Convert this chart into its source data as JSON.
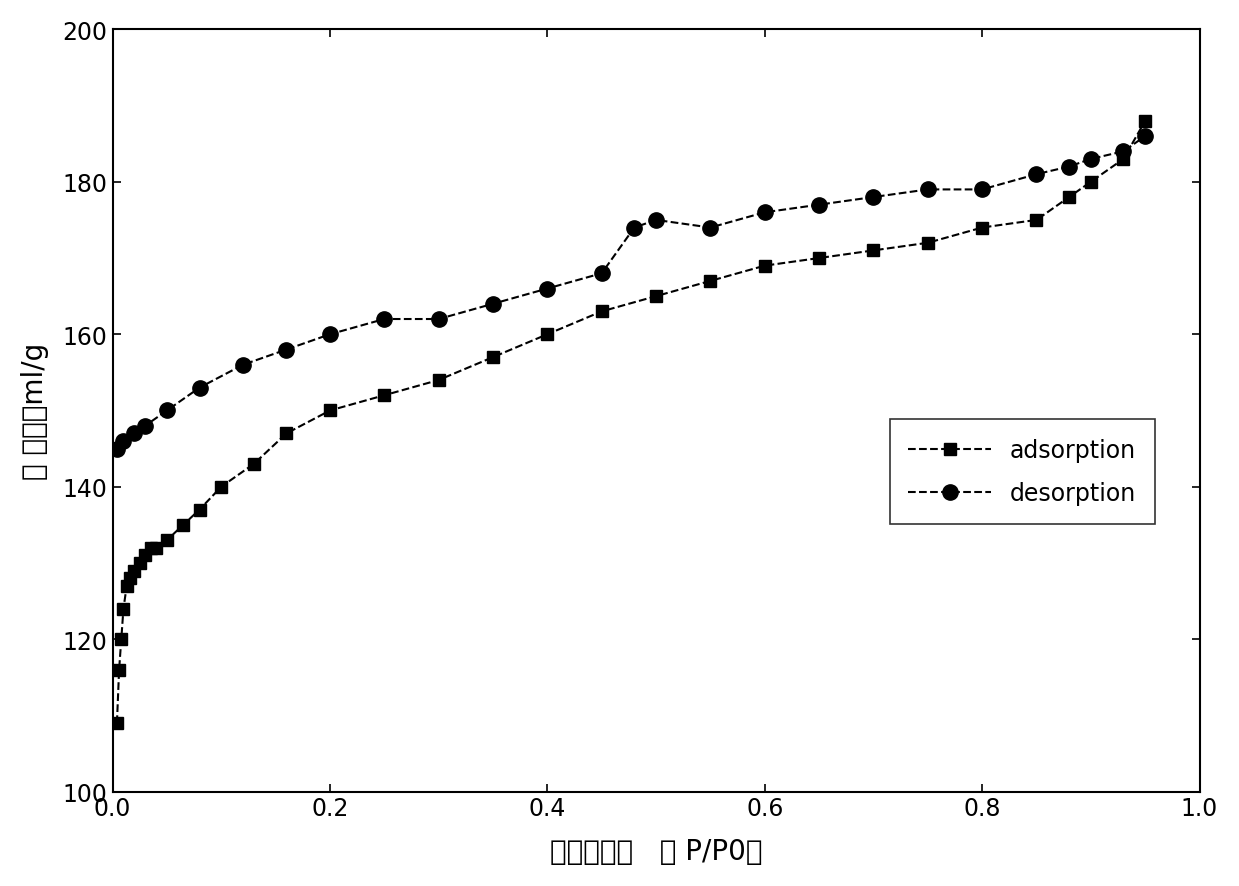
{
  "adsorption_x": [
    0.004,
    0.006,
    0.008,
    0.01,
    0.013,
    0.016,
    0.02,
    0.025,
    0.03,
    0.035,
    0.04,
    0.05,
    0.065,
    0.08,
    0.1,
    0.13,
    0.16,
    0.2,
    0.25,
    0.3,
    0.35,
    0.4,
    0.45,
    0.5,
    0.55,
    0.6,
    0.65,
    0.7,
    0.75,
    0.8,
    0.85,
    0.88,
    0.9,
    0.93,
    0.95
  ],
  "adsorption_y": [
    109,
    116,
    120,
    124,
    127,
    128,
    129,
    130,
    131,
    132,
    132,
    133,
    135,
    137,
    140,
    143,
    147,
    150,
    152,
    154,
    157,
    160,
    163,
    165,
    167,
    169,
    170,
    171,
    172,
    174,
    175,
    178,
    180,
    183,
    188
  ],
  "desorption_x": [
    0.004,
    0.01,
    0.02,
    0.03,
    0.05,
    0.08,
    0.12,
    0.16,
    0.2,
    0.25,
    0.3,
    0.35,
    0.4,
    0.45,
    0.48,
    0.5,
    0.55,
    0.6,
    0.65,
    0.7,
    0.75,
    0.8,
    0.85,
    0.88,
    0.9,
    0.93,
    0.95
  ],
  "desorption_y": [
    145,
    146,
    147,
    148,
    150,
    153,
    156,
    158,
    160,
    162,
    162,
    164,
    166,
    168,
    174,
    175,
    174,
    176,
    177,
    178,
    179,
    179,
    181,
    182,
    183,
    184,
    186
  ],
  "xlabel": "相对压力比   （ P/P0）",
  "ylabel": "标 况体积ml/g",
  "xlim": [
    0.0,
    1.0
  ],
  "ylim": [
    100,
    200
  ],
  "xticks": [
    0.0,
    0.2,
    0.4,
    0.6,
    0.8,
    1.0
  ],
  "yticks": [
    100,
    120,
    140,
    160,
    180,
    200
  ],
  "legend_adsorption": "adsorption",
  "legend_desorption": "desorption",
  "line_color": "#000000",
  "linestyle": "--",
  "marker_square": "s",
  "marker_circle": "o",
  "markersize": 9,
  "linewidth": 1.5,
  "background_color": "#ffffff"
}
